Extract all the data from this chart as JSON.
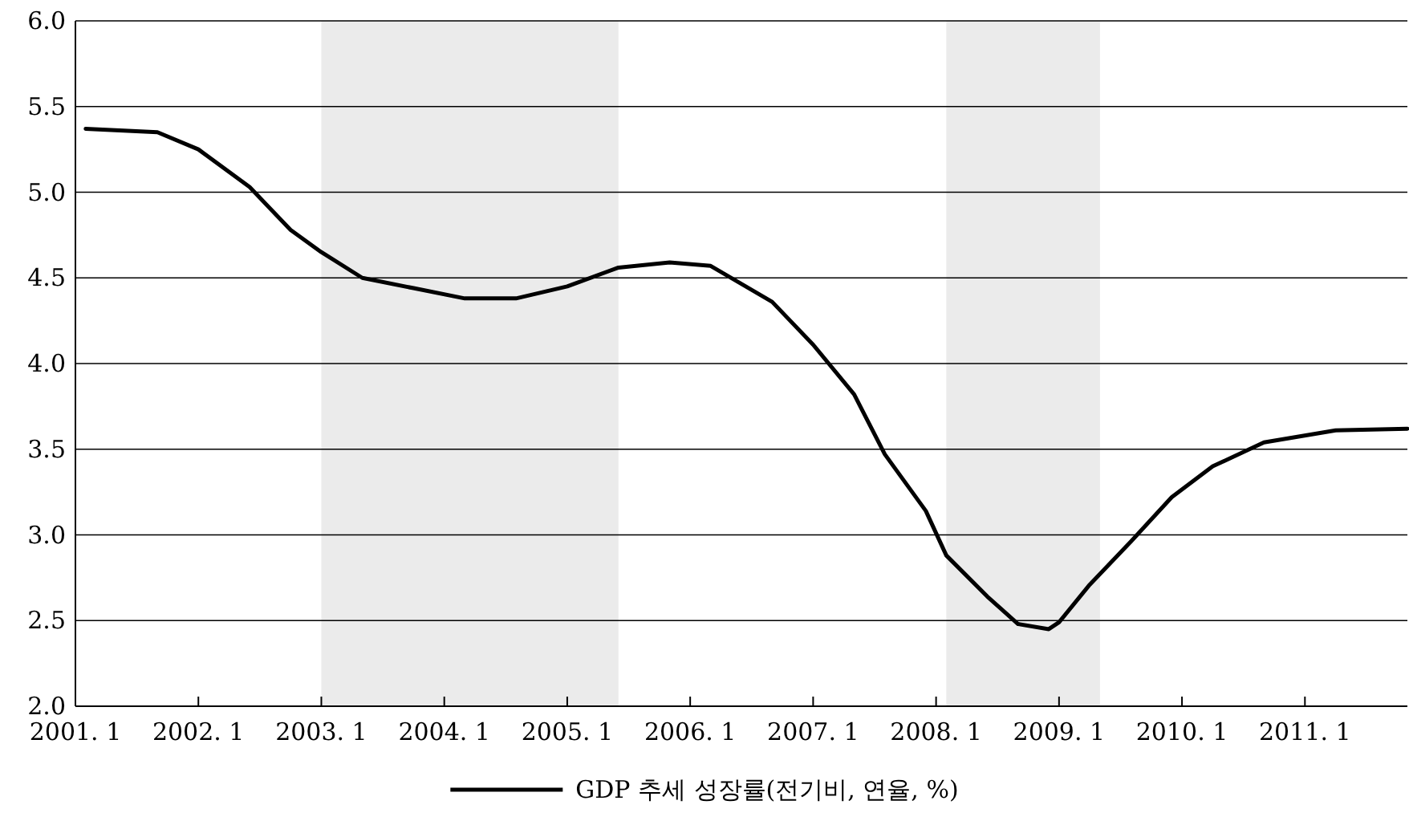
{
  "chart_data": {
    "type": "line",
    "x": [
      "2001-02",
      "2001-09",
      "2002-01",
      "2002-06",
      "2002-10",
      "2003-01",
      "2003-05",
      "2003-10",
      "2004-03",
      "2004-08",
      "2005-01",
      "2005-06",
      "2005-11",
      "2006-03",
      "2006-09",
      "2007-01",
      "2007-05",
      "2007-08",
      "2007-12",
      "2008-02",
      "2008-06",
      "2008-09",
      "2008-12",
      "2009-01",
      "2009-04",
      "2009-08",
      "2009-12",
      "2010-04",
      "2010-09",
      "2011-04",
      "2011-11"
    ],
    "series": [
      {
        "name": "GDP 추세 성장률(전기비, 연율, %)",
        "color": "#000000",
        "values": [
          5.37,
          5.35,
          5.25,
          5.03,
          4.78,
          4.65,
          4.5,
          4.44,
          4.38,
          4.38,
          4.45,
          4.56,
          4.59,
          4.57,
          4.36,
          4.11,
          3.82,
          3.47,
          3.14,
          2.88,
          2.64,
          2.48,
          2.45,
          2.49,
          2.71,
          2.96,
          3.22,
          3.4,
          3.54,
          3.61,
          3.62
        ]
      }
    ],
    "xlim": [
      "2001-01",
      "2011-11"
    ],
    "xticks": [
      {
        "value": "2001-01",
        "label": "2001. 1"
      },
      {
        "value": "2002-01",
        "label": "2002. 1"
      },
      {
        "value": "2003-01",
        "label": "2003. 1"
      },
      {
        "value": "2004-01",
        "label": "2004. 1"
      },
      {
        "value": "2005-01",
        "label": "2005. 1"
      },
      {
        "value": "2006-01",
        "label": "2006. 1"
      },
      {
        "value": "2007-01",
        "label": "2007. 1"
      },
      {
        "value": "2008-01",
        "label": "2008. 1"
      },
      {
        "value": "2009-01",
        "label": "2009. 1"
      },
      {
        "value": "2010-01",
        "label": "2010. 1"
      },
      {
        "value": "2011-01",
        "label": "2011. 1"
      }
    ],
    "ylim": [
      2.0,
      6.0
    ],
    "yticks": [
      {
        "value": 2.0,
        "label": "2.0"
      },
      {
        "value": 2.5,
        "label": "2.5"
      },
      {
        "value": 3.0,
        "label": "3.0"
      },
      {
        "value": 3.5,
        "label": "3.5"
      },
      {
        "value": 4.0,
        "label": "4.0"
      },
      {
        "value": 4.5,
        "label": "4.5"
      },
      {
        "value": 5.0,
        "label": "5.0"
      },
      {
        "value": 5.5,
        "label": "5.5"
      },
      {
        "value": 6.0,
        "label": "6.0"
      }
    ],
    "grid": "y",
    "legend": "bottom",
    "bands": [
      {
        "axis": "x",
        "from": "2003-01",
        "to": "2005-06",
        "color": "#ebebeb"
      },
      {
        "axis": "x",
        "from": "2008-02",
        "to": "2009-05",
        "color": "#ebebeb"
      }
    ]
  }
}
